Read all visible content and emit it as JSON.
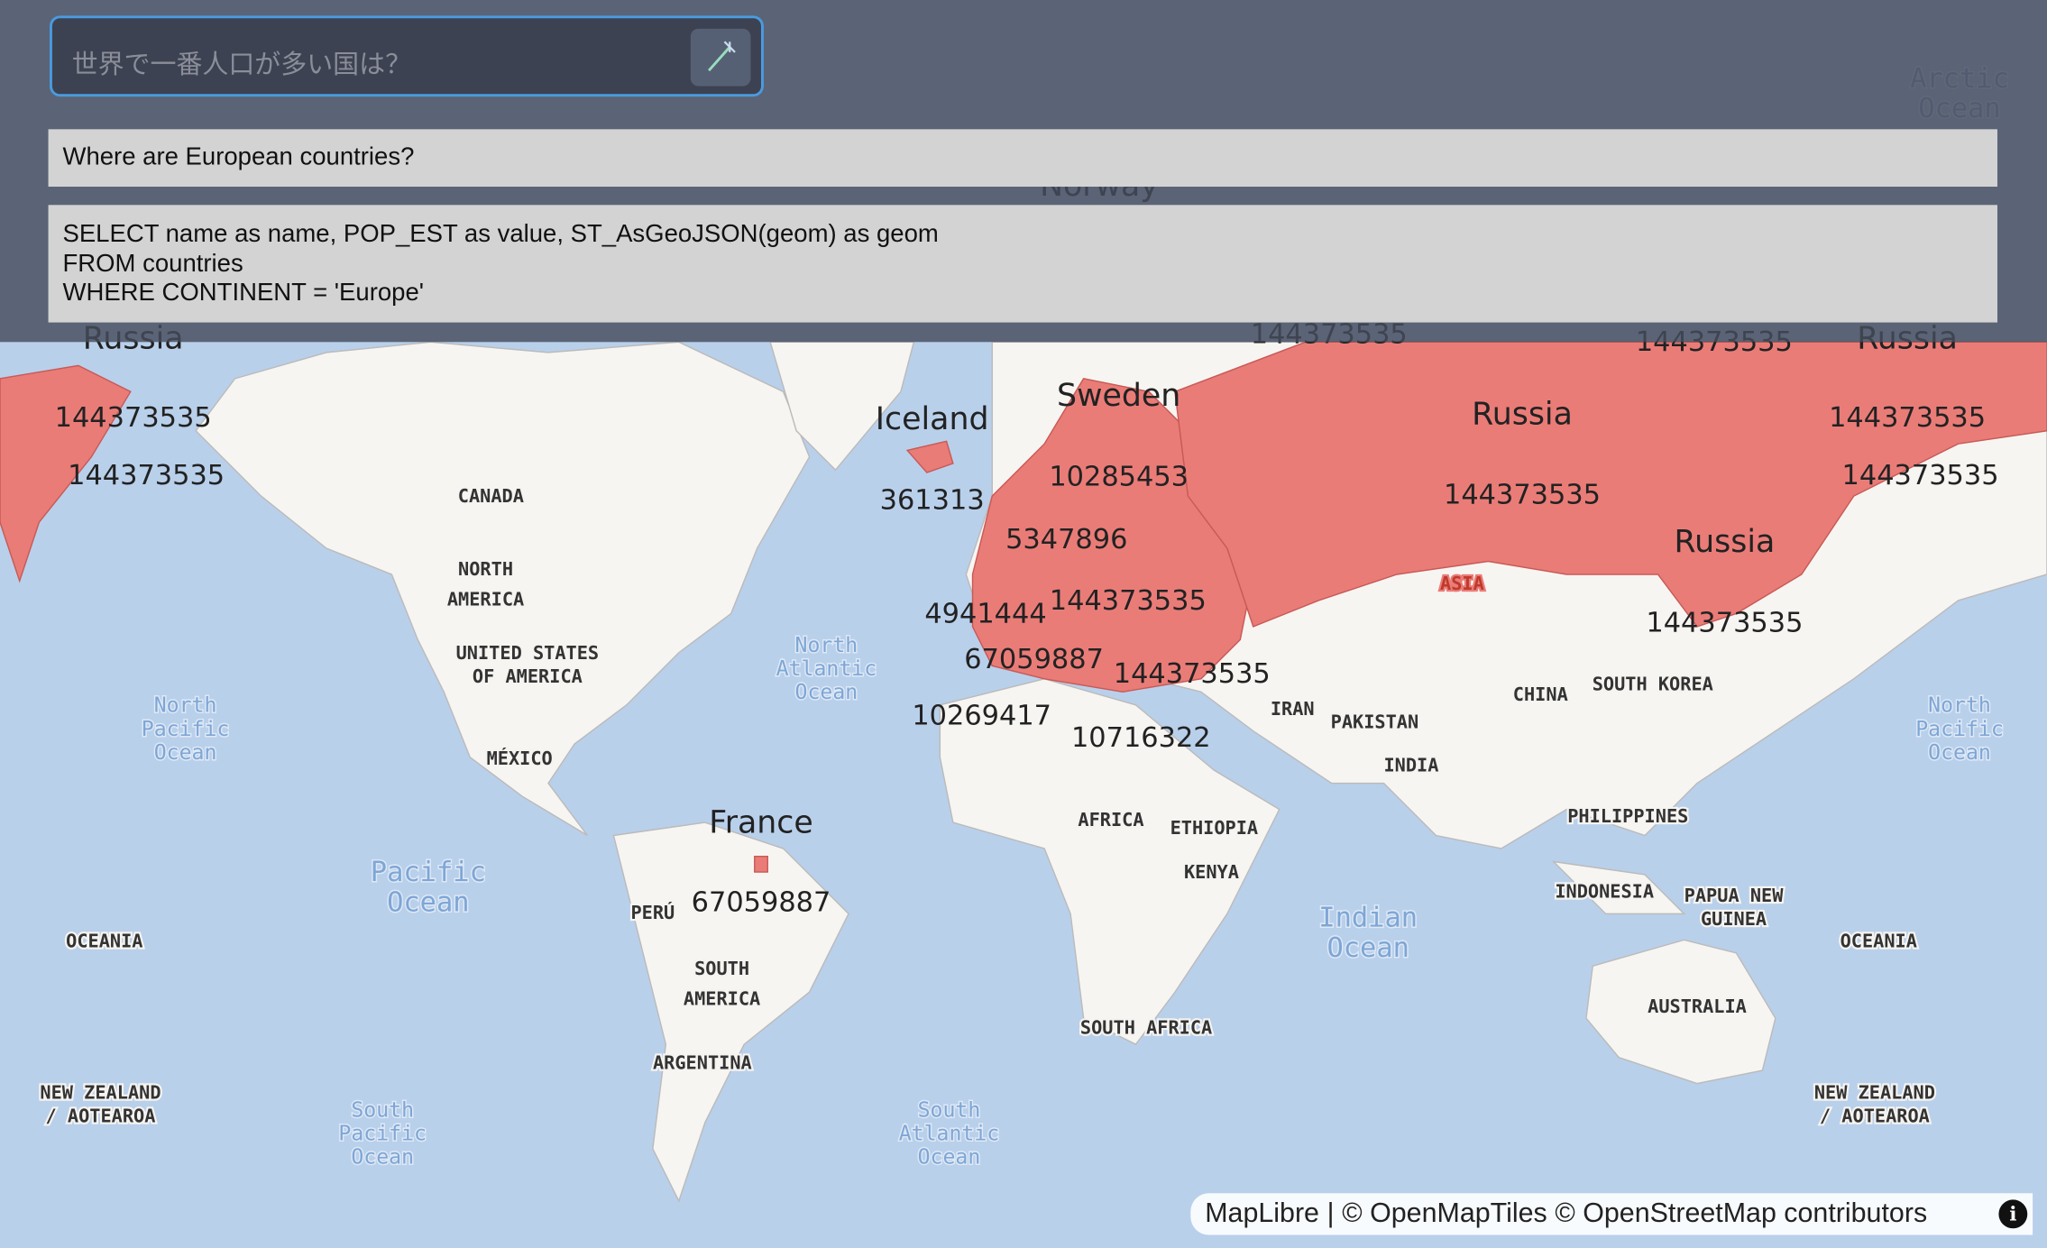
{
  "search": {
    "placeholder": "世界で一番人口が多い国は？"
  },
  "question": "Where are European countries?",
  "sql": [
    "SELECT name as name, POP_EST as value, ST_AsGeoJSON(geom) as geom",
    "FROM countries",
    "WHERE CONTINENT = 'Europe'"
  ],
  "map": {
    "country_names": [
      "Russia",
      "Russia",
      "Iceland",
      "Sweden",
      "Russia",
      "Russia",
      "France",
      "Norway"
    ],
    "populations": [
      144373535,
      144373535,
      361313,
      10285453,
      5347896,
      144373535,
      4941444,
      144373535,
      67059887,
      144373535,
      10269417,
      10716322,
      67059887,
      144373535,
      144373535,
      144373535,
      144373535,
      144373535
    ],
    "places": [
      {
        "lines": [
          "CANADA"
        ]
      },
      {
        "lines": [
          "NORTH",
          "AMERICA"
        ]
      },
      {
        "lines": [
          "UNITED STATES",
          "OF AMERICA"
        ]
      },
      {
        "lines": [
          "MÉXICO"
        ]
      },
      {
        "lines": [
          "PERÚ"
        ]
      },
      {
        "lines": [
          "SOUTH",
          "AMERICA"
        ]
      },
      {
        "lines": [
          "ARGENTINA"
        ]
      },
      {
        "lines": [
          "AFRICA"
        ]
      },
      {
        "lines": [
          "ETHIOPIA"
        ]
      },
      {
        "lines": [
          "KENYA"
        ]
      },
      {
        "lines": [
          "SOUTH AFRICA"
        ]
      },
      {
        "lines": [
          "ASIA"
        ]
      },
      {
        "lines": [
          "IRAN"
        ]
      },
      {
        "lines": [
          "PAKISTAN"
        ]
      },
      {
        "lines": [
          "INDIA"
        ]
      },
      {
        "lines": [
          "CHINA"
        ]
      },
      {
        "lines": [
          "SOUTH KOREA"
        ]
      },
      {
        "lines": [
          "PHILIPPINES"
        ]
      },
      {
        "lines": [
          "INDONESIA"
        ]
      },
      {
        "lines": [
          "PAPUA NEW",
          "GUINEA"
        ]
      },
      {
        "lines": [
          "AUSTRALIA"
        ]
      },
      {
        "lines": [
          "OCEANIA"
        ]
      },
      {
        "lines": [
          "OCEANIA"
        ]
      },
      {
        "lines": [
          "NEW ZEALAND",
          "/ AOTEAROA"
        ]
      },
      {
        "lines": [
          "NEW ZEALAND",
          "/ AOTEAROA"
        ]
      }
    ],
    "oceans": [
      {
        "lines": [
          "North",
          "Pacific",
          "Ocean"
        ]
      },
      {
        "lines": [
          "North",
          "Pacific",
          "Ocean"
        ]
      },
      {
        "lines": [
          "North",
          "Atlantic",
          "Ocean"
        ]
      },
      {
        "lines": [
          "Pacific",
          "Ocean"
        ]
      },
      {
        "lines": [
          "Indian",
          "Ocean"
        ]
      },
      {
        "lines": [
          "South",
          "Pacific",
          "Ocean"
        ]
      },
      {
        "lines": [
          "South",
          "Atlantic",
          "Ocean"
        ]
      },
      {
        "lines": [
          "Arctic",
          "Ocean"
        ]
      }
    ]
  },
  "attribution": {
    "links": [
      "MapLibre",
      "© OpenMapTiles",
      "© OpenStreetMap contributors"
    ],
    "separator": "|"
  }
}
